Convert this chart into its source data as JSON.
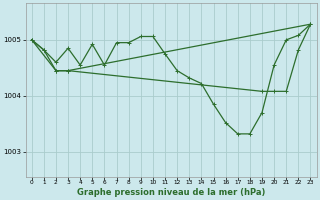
{
  "background_color": "#cce8ec",
  "grid_color": "#aacccc",
  "line_color": "#2d6e2d",
  "xlabel": "Graphe pression niveau de la mer (hPa)",
  "xlabel_fontsize": 6.0,
  "yticks": [
    1003,
    1004,
    1005
  ],
  "ylim": [
    1002.55,
    1005.65
  ],
  "xlim": [
    -0.5,
    23.5
  ],
  "xticks": [
    0,
    1,
    2,
    3,
    4,
    5,
    6,
    7,
    8,
    9,
    10,
    11,
    12,
    13,
    14,
    15,
    16,
    17,
    18,
    19,
    20,
    21,
    22,
    23
  ],
  "line1_with_markers": {
    "x": [
      0,
      1,
      2,
      3,
      4,
      5,
      6,
      7,
      8,
      9,
      10,
      11,
      12,
      13,
      14,
      15,
      16,
      17,
      18,
      19,
      20,
      21,
      22,
      23
    ],
    "y": [
      1005.0,
      1004.82,
      1004.6,
      1004.85,
      1004.55,
      1004.92,
      1004.55,
      1004.95,
      1004.95,
      1005.06,
      1005.06,
      1004.75,
      1004.45,
      1004.32,
      1004.22,
      1003.85,
      1003.52,
      1003.32,
      1003.32,
      1003.7,
      1004.55,
      1005.0,
      1005.08,
      1005.28
    ]
  },
  "line2_flat": {
    "x": [
      0,
      2,
      3,
      23
    ],
    "y": [
      1005.0,
      1004.45,
      1004.45,
      1005.28
    ]
  },
  "line3_short": {
    "x": [
      0,
      1,
      2,
      3
    ],
    "y": [
      1005.0,
      1004.82,
      1004.45,
      1004.45
    ]
  },
  "line4_lower_flat": {
    "x": [
      2,
      3,
      19,
      20,
      21,
      22,
      23
    ],
    "y": [
      1004.45,
      1004.45,
      1004.08,
      1004.08,
      1004.08,
      1004.82,
      1005.28
    ]
  },
  "marker": "+",
  "markersize": 3.5,
  "linewidth": 0.9
}
